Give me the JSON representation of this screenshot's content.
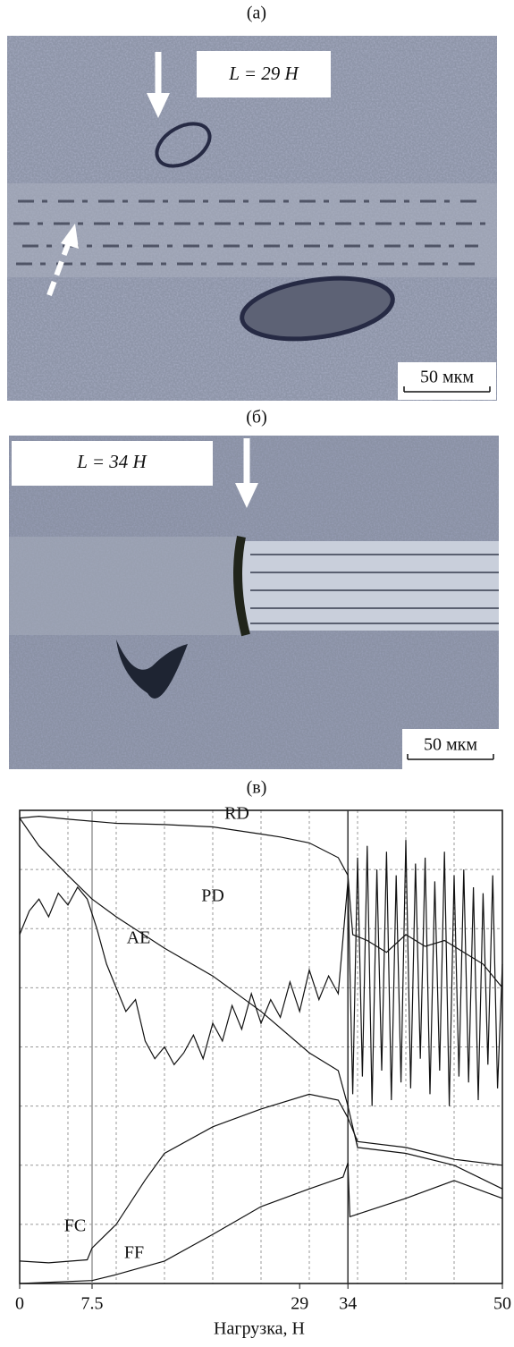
{
  "images": [
    {
      "caption": "(а)",
      "label": "L = 29 Н",
      "scale": "50 мкм"
    },
    {
      "caption": "(б)",
      "label": "L = 34 Н",
      "scale": "50 мкм"
    }
  ],
  "chart_data": {
    "type": "line",
    "title": "(в)",
    "x_label": "Нагрузка, Н",
    "xlim": [
      0,
      50
    ],
    "xticks": [
      0,
      7.5,
      29,
      34,
      50
    ],
    "xgrid": [
      5,
      10,
      15,
      20,
      25,
      30,
      35,
      40,
      45
    ],
    "ylim": [
      0,
      8
    ],
    "ygrid": [
      1,
      2,
      3,
      4,
      5,
      6,
      7
    ],
    "series": [
      {
        "name": "RD",
        "color": "#111111",
        "x": [
          0,
          2,
          5,
          10,
          15,
          20,
          25,
          27,
          30,
          33,
          34,
          34.5,
          36,
          38,
          40,
          42,
          44,
          46,
          48,
          50
        ],
        "values": [
          7.87,
          7.9,
          7.85,
          7.78,
          7.76,
          7.72,
          7.6,
          7.55,
          7.45,
          7.2,
          6.9,
          5.9,
          5.8,
          5.6,
          5.9,
          5.7,
          5.8,
          5.6,
          5.4,
          5.0
        ]
      },
      {
        "name": "PD",
        "color": "#111111",
        "x": [
          0,
          2,
          5,
          7.5,
          10,
          15,
          20,
          25,
          30,
          33,
          34,
          35,
          40,
          45,
          50
        ],
        "values": [
          7.87,
          7.4,
          6.9,
          6.5,
          6.2,
          5.67,
          5.2,
          4.6,
          3.9,
          3.6,
          3.0,
          2.3,
          2.2,
          2.0,
          1.6
        ]
      },
      {
        "name": "AE",
        "color": "#111111",
        "x": [
          0,
          1,
          2,
          3,
          4,
          5,
          6,
          7,
          8,
          9,
          10,
          11,
          12,
          13,
          14,
          15,
          16,
          17,
          18,
          19,
          20,
          21,
          22,
          23,
          24,
          25,
          26,
          27,
          28,
          29,
          30,
          31,
          32,
          33,
          34,
          34.5,
          35,
          35.5,
          36,
          36.5,
          37,
          37.5,
          38,
          38.5,
          39,
          39.5,
          40,
          40.5,
          41,
          41.5,
          42,
          42.5,
          43,
          43.5,
          44,
          44.5,
          45,
          45.5,
          46,
          46.5,
          47,
          47.5,
          48,
          48.5,
          49,
          49.5,
          50
        ],
        "values": [
          5.9,
          6.3,
          6.5,
          6.2,
          6.6,
          6.4,
          6.7,
          6.5,
          6.0,
          5.4,
          5.0,
          4.6,
          4.8,
          4.1,
          3.8,
          4.0,
          3.7,
          3.9,
          4.2,
          3.8,
          4.4,
          4.1,
          4.7,
          4.3,
          4.9,
          4.4,
          4.8,
          4.5,
          5.1,
          4.6,
          5.3,
          4.8,
          5.2,
          4.9,
          6.8,
          3.2,
          7.2,
          3.5,
          7.4,
          3.0,
          7.0,
          3.6,
          7.3,
          3.1,
          6.9,
          3.4,
          7.5,
          3.3,
          7.1,
          3.8,
          7.2,
          3.2,
          6.8,
          3.6,
          7.3,
          3.0,
          6.9,
          3.5,
          7.0,
          3.4,
          6.7,
          3.1,
          6.6,
          3.7,
          6.9,
          3.3,
          5.4
        ]
      },
      {
        "name": "FC",
        "color": "#111111",
        "x": [
          0,
          3,
          7,
          7.5,
          10,
          13,
          15,
          20,
          25,
          30,
          33,
          34,
          35,
          40,
          45,
          50
        ],
        "values": [
          0.38,
          0.35,
          0.4,
          0.6,
          1.0,
          1.75,
          2.2,
          2.65,
          2.95,
          3.2,
          3.1,
          2.8,
          2.4,
          2.3,
          2.1,
          2.0
        ]
      },
      {
        "name": "FF",
        "color": "#111111",
        "x": [
          0,
          7.5,
          10,
          15,
          20,
          25,
          30,
          33.5,
          34,
          34.2,
          40,
          45,
          50
        ],
        "values": [
          0,
          0.05,
          0.15,
          0.38,
          0.83,
          1.3,
          1.6,
          1.8,
          2.04,
          1.13,
          1.44,
          1.74,
          1.44
        ]
      }
    ]
  }
}
